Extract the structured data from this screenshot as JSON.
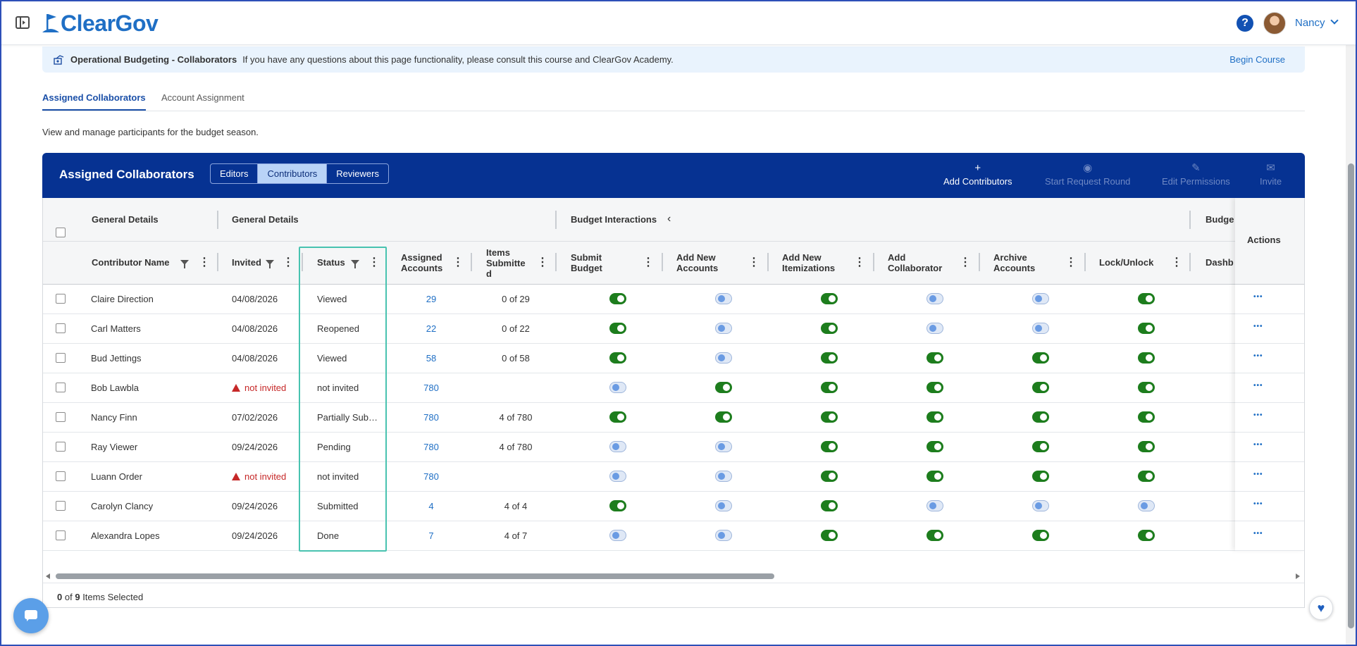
{
  "app": {
    "logo_text": "ClearGov",
    "user_name": "Nancy",
    "help_label": "?"
  },
  "banner": {
    "title": "Operational Budgeting - Collaborators",
    "text": "If you have any questions about this page functionality, please consult this course and ClearGov Academy.",
    "link": "Begin Course"
  },
  "tabs": [
    {
      "label": "Assigned Collaborators",
      "active": true
    },
    {
      "label": "Account Assignment",
      "active": false
    }
  ],
  "page_description": "View and manage participants for the budget season.",
  "panel": {
    "title": "Assigned Collaborators",
    "segments": [
      {
        "label": "Editors",
        "active": false
      },
      {
        "label": "Contributors",
        "active": true
      },
      {
        "label": "Reviewers",
        "active": false
      }
    ],
    "actions": [
      {
        "label": "Add Contributors",
        "icon": "+",
        "enabled": true
      },
      {
        "label": "Start Request Round",
        "icon": "◉",
        "enabled": false
      },
      {
        "label": "Edit Permissions",
        "icon": "✎",
        "enabled": false
      },
      {
        "label": "Invite",
        "icon": "✉",
        "enabled": false
      }
    ]
  },
  "grid": {
    "group_headers": {
      "general_details_1": "General Details",
      "general_details_2": "General Details",
      "budget_interactions": "Budget Interactions",
      "budget_truncated": "Budge",
      "actions": "Actions"
    },
    "columns": {
      "contributor_name": "Contributor Name",
      "invited": "Invited",
      "status": "Status",
      "assigned_accounts_1": "Assigned",
      "assigned_accounts_2": "Accounts",
      "items_submitted_1": "Items",
      "items_submitted_2": "Submitte",
      "items_submitted_3": "d",
      "submit_budget_1": "Submit",
      "submit_budget_2": "Budget",
      "add_new_accounts_1": "Add New",
      "add_new_accounts_2": "Accounts",
      "add_new_itemizations_1": "Add New",
      "add_new_itemizations_2": "Itemizations",
      "add_collaborator_1": "Add",
      "add_collaborator_2": "Collaborator",
      "archive_accounts_1": "Archive",
      "archive_accounts_2": "Accounts",
      "lock_unlock": "Lock/Unlock",
      "dashboard_truncated": "Dashb"
    },
    "rows": [
      {
        "name": "Claire Direction",
        "invited": "04/08/2026",
        "not_invited": false,
        "status": "Viewed",
        "assigned": "29",
        "items": "0 of 29",
        "toggles": [
          true,
          false,
          true,
          false,
          false,
          true
        ]
      },
      {
        "name": "Carl Matters",
        "invited": "04/08/2026",
        "not_invited": false,
        "status": "Reopened",
        "assigned": "22",
        "items": "0 of 22",
        "toggles": [
          true,
          false,
          true,
          false,
          false,
          true
        ]
      },
      {
        "name": "Bud Jettings",
        "invited": "04/08/2026",
        "not_invited": false,
        "status": "Viewed",
        "assigned": "58",
        "items": "0 of 58",
        "toggles": [
          true,
          false,
          true,
          true,
          true,
          true
        ]
      },
      {
        "name": "Bob Lawbla",
        "invited": "not invited",
        "not_invited": true,
        "status": "not invited",
        "assigned": "780",
        "items": "",
        "toggles": [
          false,
          true,
          true,
          true,
          true,
          true
        ]
      },
      {
        "name": "Nancy Finn",
        "invited": "07/02/2026",
        "not_invited": false,
        "status": "Partially Sub…",
        "assigned": "780",
        "items": "4 of 780",
        "toggles": [
          true,
          true,
          true,
          true,
          true,
          true
        ]
      },
      {
        "name": "Ray Viewer",
        "invited": "09/24/2026",
        "not_invited": false,
        "status": "Pending",
        "assigned": "780",
        "items": "4 of 780",
        "toggles": [
          false,
          false,
          true,
          true,
          true,
          true
        ]
      },
      {
        "name": "Luann Order",
        "invited": "not invited",
        "not_invited": true,
        "status": "not invited",
        "assigned": "780",
        "items": "",
        "toggles": [
          false,
          false,
          true,
          true,
          true,
          true
        ]
      },
      {
        "name": "Carolyn Clancy",
        "invited": "09/24/2026",
        "not_invited": false,
        "status": "Submitted",
        "assigned": "4",
        "items": "4 of 4",
        "toggles": [
          true,
          false,
          true,
          false,
          false,
          false
        ]
      },
      {
        "name": "Alexandra Lopes",
        "invited": "09/24/2026",
        "not_invited": false,
        "status": "Done",
        "assigned": "7",
        "items": "4 of 7",
        "toggles": [
          false,
          false,
          true,
          true,
          true,
          true
        ]
      }
    ],
    "row_action_label": "•••"
  },
  "footer": {
    "selected_count": "0",
    "of_label": "of",
    "total_count": "9",
    "items_selected_label": "Items Selected"
  },
  "colors": {
    "brand_blue": "#063292",
    "toggle_on": "#1d7d1d",
    "link_blue": "#1f6fc5",
    "highlight_teal": "#48c3b0",
    "warning_red": "#c62828"
  }
}
